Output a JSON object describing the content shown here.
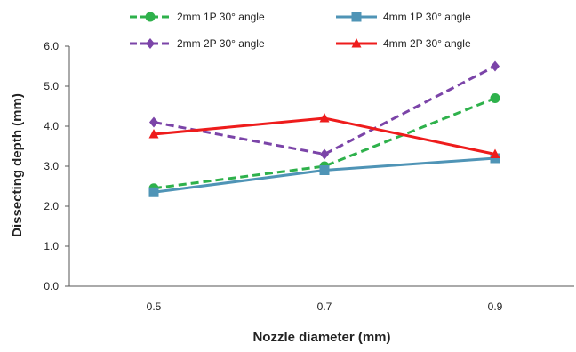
{
  "chart_data": {
    "type": "line",
    "title": "",
    "xlabel": "Nozzle diameter (mm)",
    "ylabel": "Dissecting depth (mm)",
    "categories": [
      "0.5",
      "0.7",
      "0.9"
    ],
    "ylim": [
      0,
      6
    ],
    "yticks": [
      "0.0",
      "1.0",
      "2.0",
      "3.0",
      "4.0",
      "5.0",
      "6.0"
    ],
    "grid": false,
    "legend_position": "top",
    "series": [
      {
        "name": "2mm  1P 30° angle",
        "values": [
          2.45,
          3.0,
          4.7
        ],
        "color": "#2eb14b",
        "dash": "dashed",
        "marker": "circle"
      },
      {
        "name": "4mm  1P 30° angle",
        "values": [
          2.35,
          2.9,
          3.2
        ],
        "color": "#4f94b6",
        "dash": "solid",
        "marker": "square"
      },
      {
        "name": "2mm  2P 30° angle",
        "values": [
          4.1,
          3.3,
          5.5
        ],
        "color": "#7b44a8",
        "dash": "dashed",
        "marker": "diamond"
      },
      {
        "name": "4mm  2P 30° angle",
        "values": [
          3.8,
          4.2,
          3.3
        ],
        "color": "#ee1c1c",
        "dash": "solid",
        "marker": "triangle"
      }
    ]
  }
}
